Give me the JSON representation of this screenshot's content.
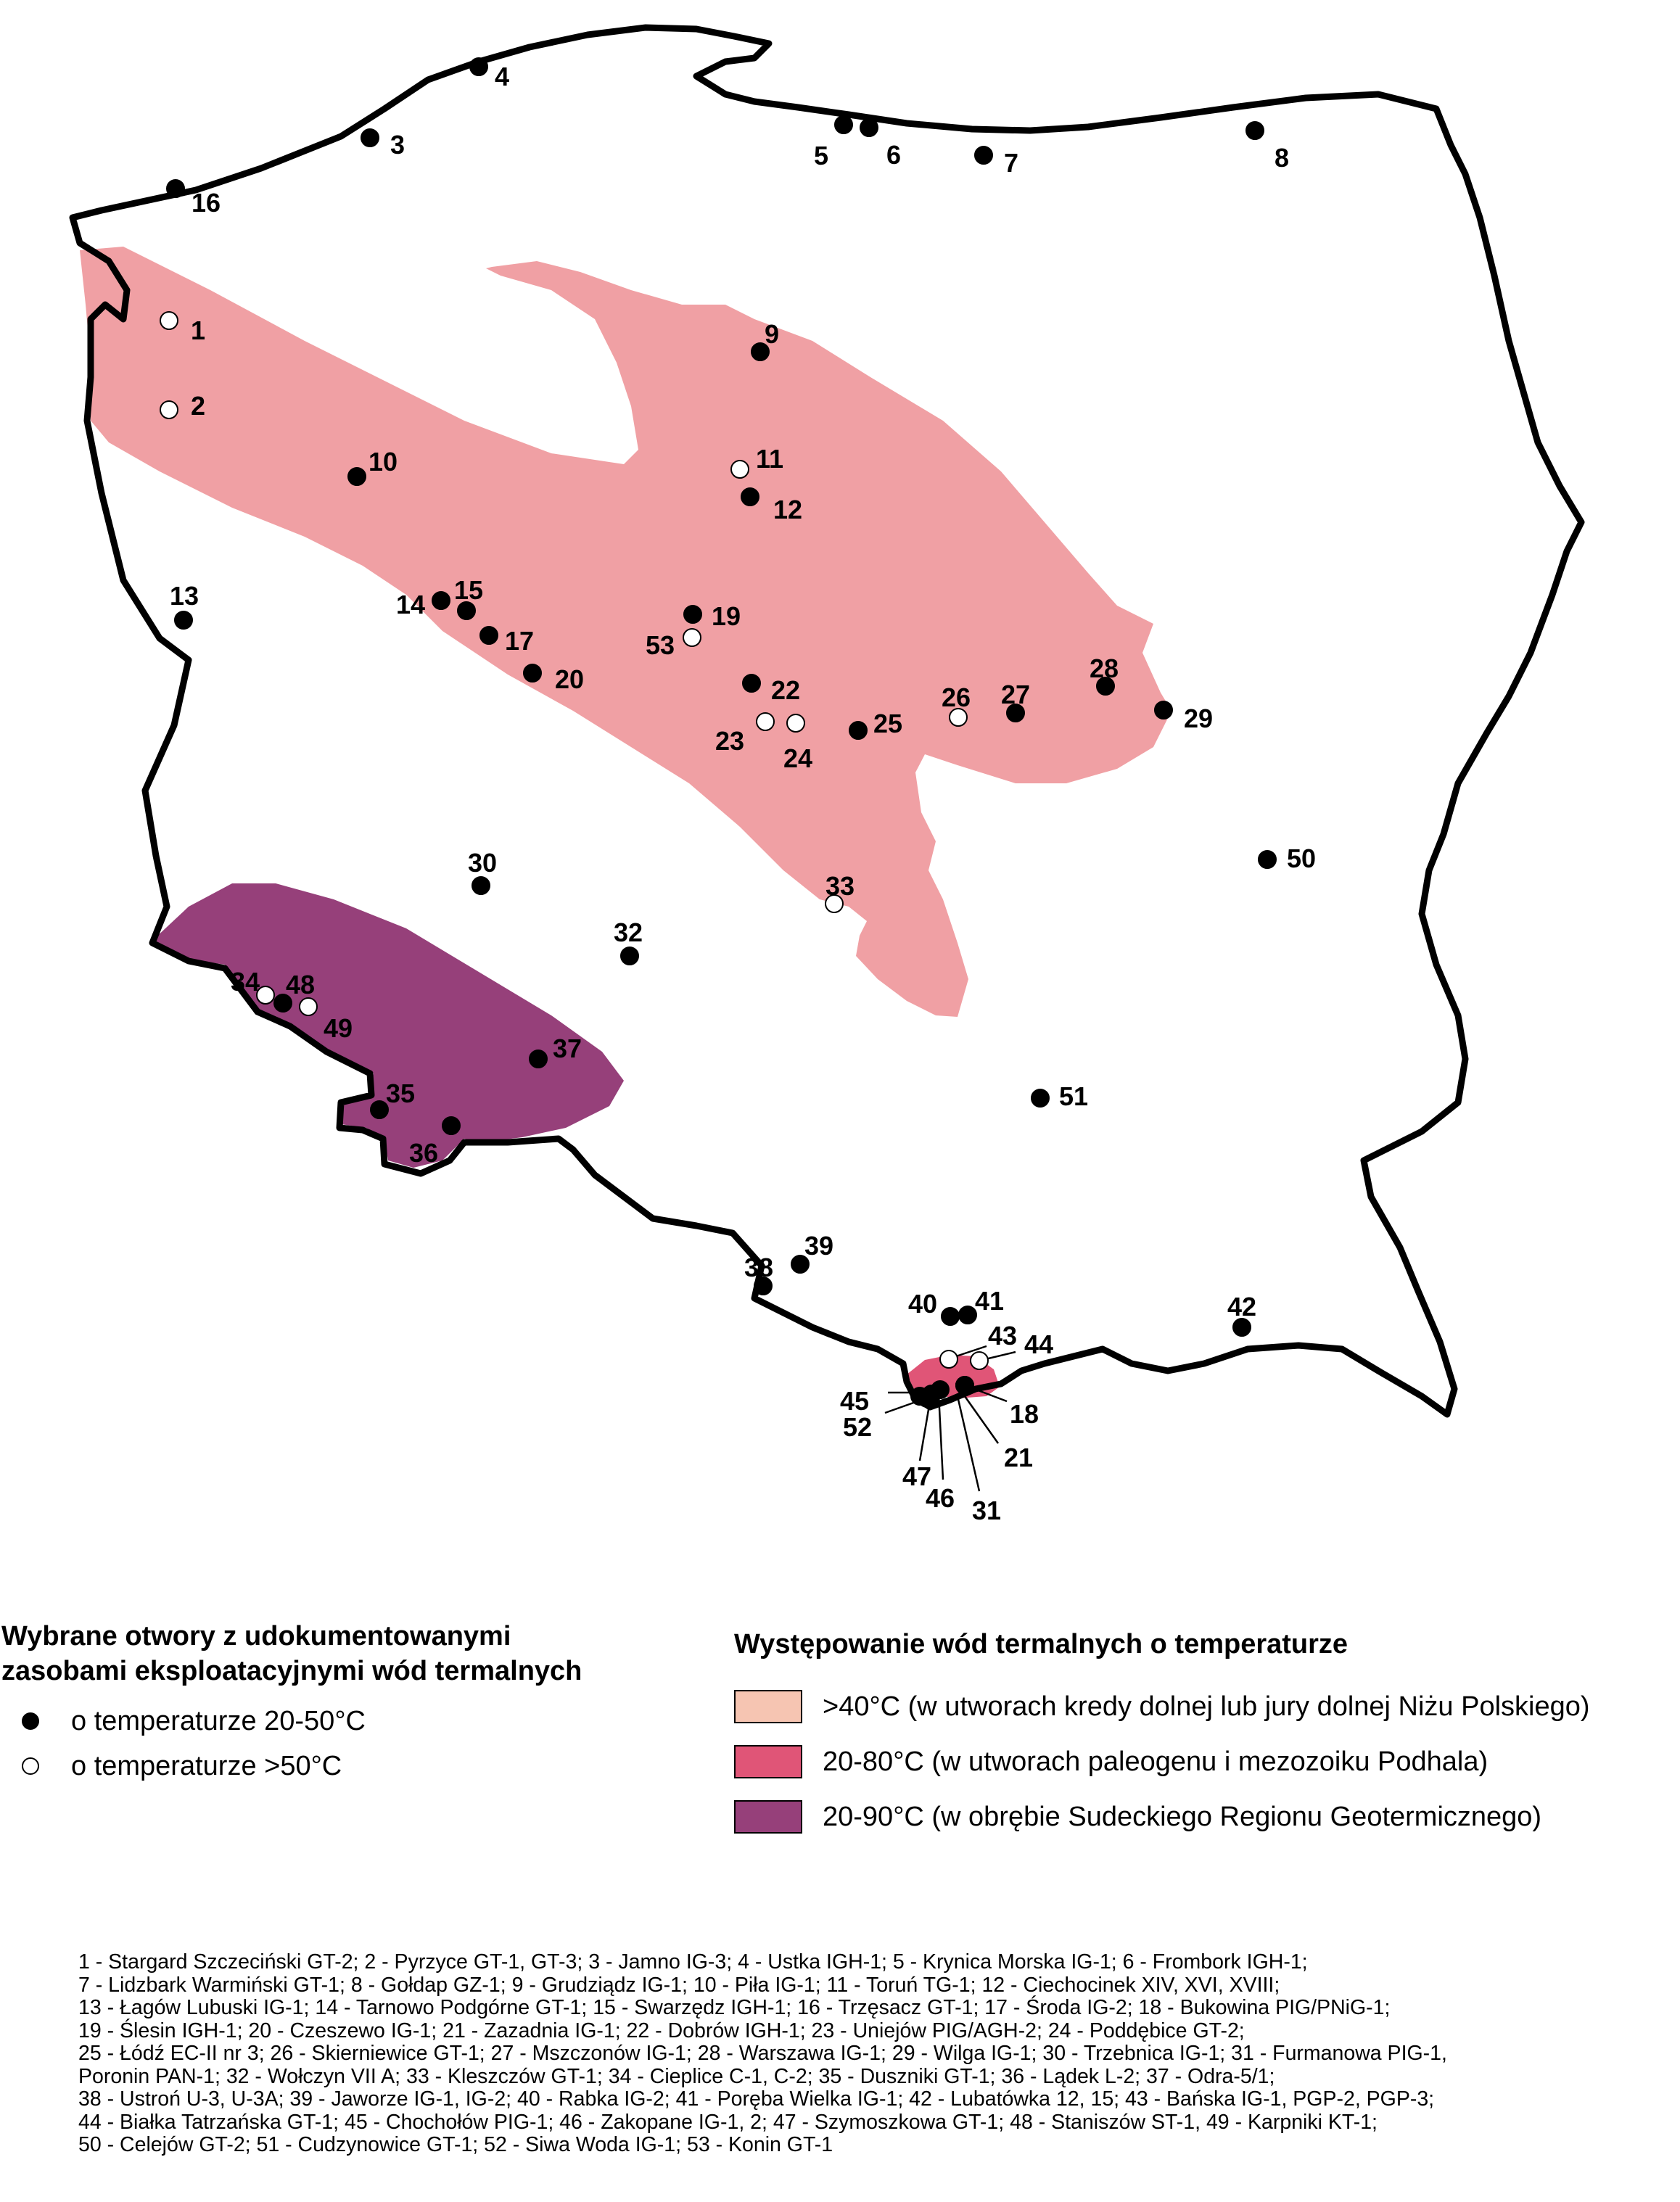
{
  "colors": {
    "cretaceous_jurassic": "#f0a0a4",
    "podhale": "#e05577",
    "sudetic": "#96407a",
    "legend_cretaceous_swatch": "#f6c5b2",
    "outline": "#000000"
  },
  "wells": [
    {
      "id": "1",
      "temp": "hot"
    },
    {
      "id": "2",
      "temp": "hot"
    },
    {
      "id": "3",
      "temp": "warm"
    },
    {
      "id": "4",
      "temp": "warm"
    },
    {
      "id": "5",
      "temp": "warm"
    },
    {
      "id": "6",
      "temp": "warm"
    },
    {
      "id": "7",
      "temp": "warm"
    },
    {
      "id": "8",
      "temp": "warm"
    },
    {
      "id": "9",
      "temp": "warm"
    },
    {
      "id": "10",
      "temp": "warm"
    },
    {
      "id": "11",
      "temp": "hot"
    },
    {
      "id": "12",
      "temp": "warm"
    },
    {
      "id": "13",
      "temp": "warm"
    },
    {
      "id": "14",
      "temp": "warm"
    },
    {
      "id": "15",
      "temp": "warm"
    },
    {
      "id": "16",
      "temp": "warm"
    },
    {
      "id": "17",
      "temp": "warm"
    },
    {
      "id": "18",
      "temp": "warm"
    },
    {
      "id": "19",
      "temp": "warm"
    },
    {
      "id": "20",
      "temp": "warm"
    },
    {
      "id": "21",
      "temp": "warm"
    },
    {
      "id": "22",
      "temp": "warm"
    },
    {
      "id": "23",
      "temp": "hot"
    },
    {
      "id": "24",
      "temp": "hot"
    },
    {
      "id": "25",
      "temp": "warm"
    },
    {
      "id": "26",
      "temp": "hot"
    },
    {
      "id": "27",
      "temp": "warm"
    },
    {
      "id": "28",
      "temp": "warm"
    },
    {
      "id": "29",
      "temp": "warm"
    },
    {
      "id": "30",
      "temp": "warm"
    },
    {
      "id": "31",
      "temp": "warm"
    },
    {
      "id": "32",
      "temp": "warm"
    },
    {
      "id": "33",
      "temp": "hot"
    },
    {
      "id": "34",
      "temp": "hot"
    },
    {
      "id": "35",
      "temp": "warm"
    },
    {
      "id": "36",
      "temp": "warm"
    },
    {
      "id": "37",
      "temp": "warm"
    },
    {
      "id": "38",
      "temp": "warm"
    },
    {
      "id": "39",
      "temp": "warm"
    },
    {
      "id": "40",
      "temp": "warm"
    },
    {
      "id": "41",
      "temp": "warm"
    },
    {
      "id": "42",
      "temp": "warm"
    },
    {
      "id": "43",
      "temp": "hot"
    },
    {
      "id": "44",
      "temp": "hot"
    },
    {
      "id": "45",
      "temp": "warm"
    },
    {
      "id": "46",
      "temp": "warm"
    },
    {
      "id": "47",
      "temp": "warm"
    },
    {
      "id": "48",
      "temp": "warm"
    },
    {
      "id": "49",
      "temp": "hot"
    },
    {
      "id": "50",
      "temp": "warm"
    },
    {
      "id": "51",
      "temp": "warm"
    },
    {
      "id": "52",
      "temp": "warm"
    },
    {
      "id": "53",
      "temp": "hot"
    }
  ],
  "legend_wells": {
    "title_line1": "Wybrane otwory z udokumentowanymi",
    "title_line2": "zasobami eksploatacyjnymi wód termalnych",
    "warm_label": "o temperaturze 20-50°C",
    "hot_label": "o temperaturze >50°C"
  },
  "legend_waters": {
    "title": "Występowanie wód termalnych o temperaturze",
    "items": [
      {
        "label": ">40°C (w utworach kredy dolnej lub jury dolnej Niżu Polskiego)"
      },
      {
        "label": "20-80°C (w utworach paleogenu i mezozoiku Podhala)"
      },
      {
        "label": "20-90°C (w obrębie Sudeckiego Regionu Geotermicznego)"
      }
    ]
  },
  "footnote_lines": [
    "1 - Stargard Szczeciński GT-2; 2 - Pyrzyce GT-1, GT-3; 3 - Jamno IG-3; 4 - Ustka IGH-1; 5 - Krynica Morska IG-1; 6 - Frombork IGH-1;",
    "7 - Lidzbark Warmiński GT-1; 8 - Gołdap GZ-1; 9 - Grudziądz IG-1; 10 - Piła IG-1; 11 - Toruń TG-1; 12 - Ciechocinek XIV, XVI, XVIII;",
    "13 - Łagów Lubuski IG-1; 14 - Tarnowo Podgórne GT-1; 15 - Swarzędz IGH-1; 16 - Trzęsacz GT-1; 17 - Środa IG-2; 18 - Bukowina PIG/PNiG-1;",
    "19 - Ślesin IGH-1; 20 - Czeszewo IG-1; 21 - Zazadnia IG-1; 22 - Dobrów IGH-1; 23 - Uniejów PIG/AGH-2; 24 - Poddębice GT-2;",
    "25 - Łódź EC-II nr 3; 26 - Skierniewice GT-1; 27 - Mszczonów IG-1; 28 - Warszawa IG-1; 29 - Wilga IG-1; 30 - Trzebnica IG-1; 31 - Furmanowa PIG-1,",
    "Poronin PAN-1; 32 - Wołczyn VII A; 33 - Kleszczów GT-1; 34 - Cieplice C-1, C-2; 35 - Duszniki GT-1; 36 - Lądek L-2; 37 - Odra-5/1;",
    "38 - Ustroń U-3, U-3A; 39 - Jaworze IG-1, IG-2; 40 - Rabka IG-2; 41 - Poręba Wielka IG-1; 42 - Lubatówka 12, 15; 43 - Bańska IG-1, PGP-2, PGP-3;",
    "44 - Białka Tatrzańska GT-1; 45 - Chochołów PIG-1; 46 - Zakopane IG-1, 2; 47 - Szymoszkowa GT-1; 48 - Staniszów ST-1, 49 - Karpniki KT-1;",
    "50 - Celejów GT-2; 51 - Cudzynowice GT-1; 52 - Siwa Woda IG-1; 53 - Konin GT-1"
  ]
}
